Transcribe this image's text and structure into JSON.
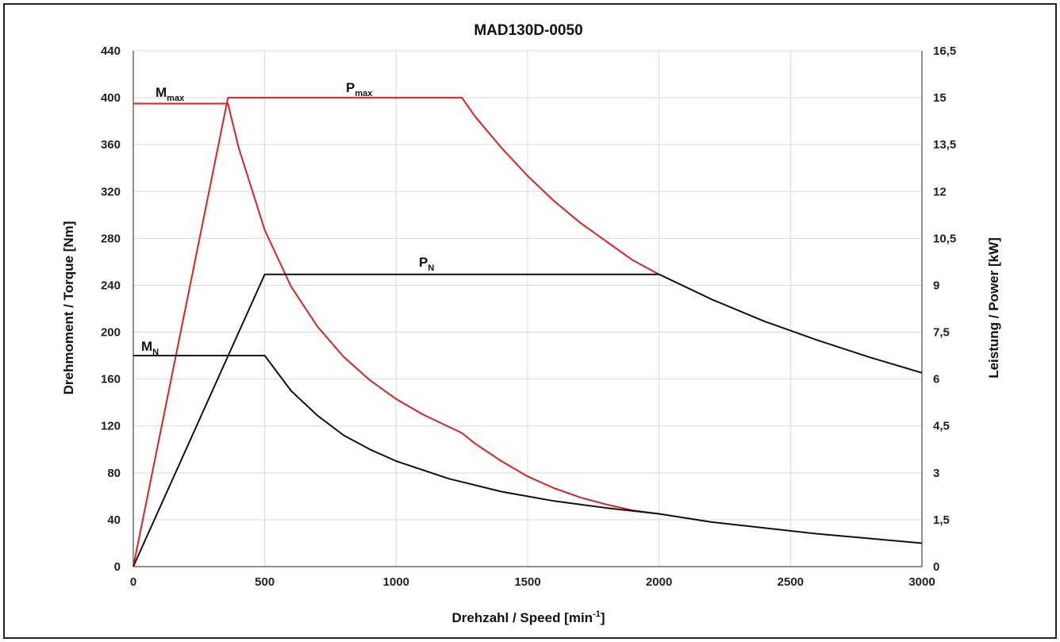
{
  "chart_data": {
    "type": "line",
    "title": "MAD130D-0050",
    "xlabel": "Drehzahl / Speed [min",
    "xlabel_sup": "-1",
    "xlabel_end": "]",
    "ylabel_left": "Drehmoment / Torque [Nm]",
    "ylabel_right": "Leistung / Power [kW]",
    "xlim": [
      0,
      3000
    ],
    "ylim_left": [
      0,
      440
    ],
    "ylim_right": [
      0,
      16.5
    ],
    "xticks": [
      0,
      500,
      1000,
      1500,
      2000,
      2500,
      3000
    ],
    "xtick_labels": [
      "0",
      "500",
      "1000",
      "1500",
      "2000",
      "2500",
      "3000"
    ],
    "yticks_left": [
      0,
      40,
      80,
      120,
      160,
      200,
      240,
      280,
      320,
      360,
      400,
      440
    ],
    "ytick_labels_left": [
      "0",
      "40",
      "80",
      "120",
      "160",
      "200",
      "240",
      "280",
      "320",
      "360",
      "400",
      "440"
    ],
    "yticks_right": [
      0,
      1.5,
      3,
      4.5,
      6,
      7.5,
      9,
      10.5,
      12,
      13.5,
      15,
      16.5
    ],
    "ytick_labels_right": [
      "0",
      "1,5",
      "3",
      "4,5",
      "6",
      "7,5",
      "9",
      "10,5",
      "12",
      "13,5",
      "15",
      "16,5"
    ],
    "grid": true,
    "series": [
      {
        "name": "M",
        "name_sub": "max",
        "axis": "left",
        "color": "#e02020",
        "x": [
          0,
          360,
          400,
          500,
          600,
          700,
          800,
          900,
          1000,
          1100,
          1250,
          1300,
          1400,
          1500,
          1600,
          1700,
          1800,
          1900,
          2000
        ],
        "y": [
          395,
          395,
          358,
          287,
          239,
          205,
          179,
          159,
          143,
          130,
          114,
          105,
          90,
          77,
          67,
          59,
          53,
          48,
          45
        ]
      },
      {
        "name": "P",
        "name_sub": "max",
        "axis": "right",
        "color": "#e02020",
        "x": [
          0,
          360,
          1250,
          1300,
          1400,
          1500,
          1600,
          1700,
          1800,
          1900,
          2000
        ],
        "y": [
          0,
          15.0,
          15.0,
          14.4,
          13.4,
          12.5,
          11.7,
          11.0,
          10.4,
          9.8,
          9.35
        ]
      },
      {
        "name": "M",
        "name_sub": "N",
        "axis": "left",
        "color": "#111111",
        "x": [
          0,
          500,
          600,
          700,
          800,
          900,
          1000,
          1200,
          1400,
          1600,
          1800,
          2000,
          2200,
          2400,
          2600,
          2800,
          3000
        ],
        "y": [
          180,
          180,
          150,
          129,
          112,
          100,
          90,
          75,
          64,
          56,
          50,
          45,
          38,
          33,
          28,
          24,
          20
        ]
      },
      {
        "name": "P",
        "name_sub": "N",
        "axis": "right",
        "color": "#111111",
        "x": [
          0,
          500,
          2000,
          2200,
          2400,
          2600,
          2800,
          3000
        ],
        "y": [
          0,
          9.35,
          9.35,
          8.55,
          7.85,
          7.25,
          6.7,
          6.2
        ]
      }
    ]
  }
}
